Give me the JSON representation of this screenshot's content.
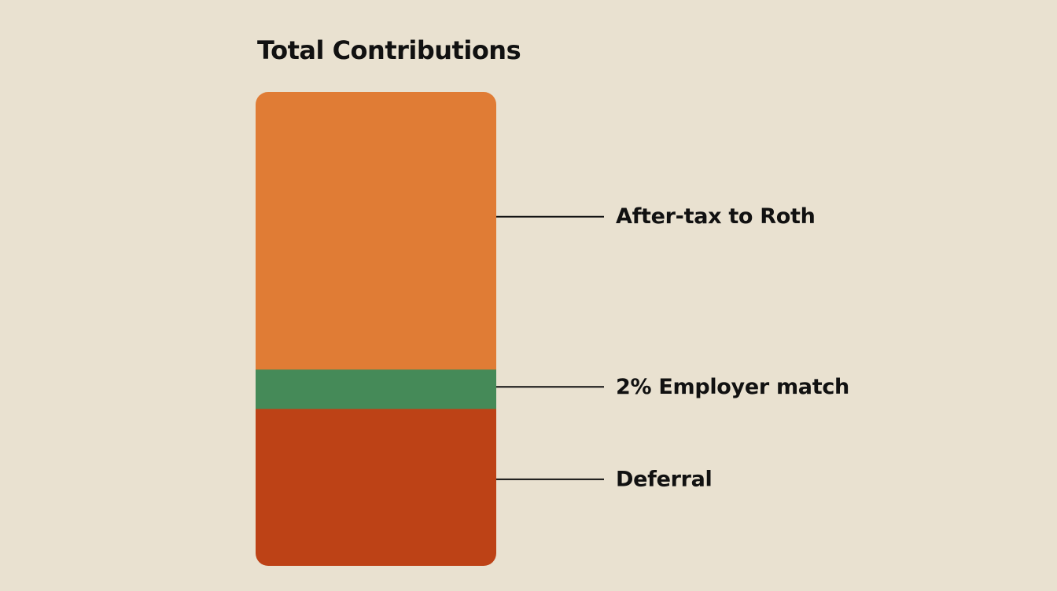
{
  "chart_data": {
    "type": "stacked_bar",
    "title": "Total Contributions",
    "categories": [
      null
    ],
    "series": [
      {
        "name": "Deferral",
        "color": "#bd4318",
        "values": [
          33.2
        ]
      },
      {
        "name": "2% Employer match",
        "color": "#458a58",
        "values": [
          8.3
        ]
      },
      {
        "name": "After-tax to Roth",
        "color": "#e07b36",
        "values": [
          58.5
        ]
      }
    ]
  }
}
